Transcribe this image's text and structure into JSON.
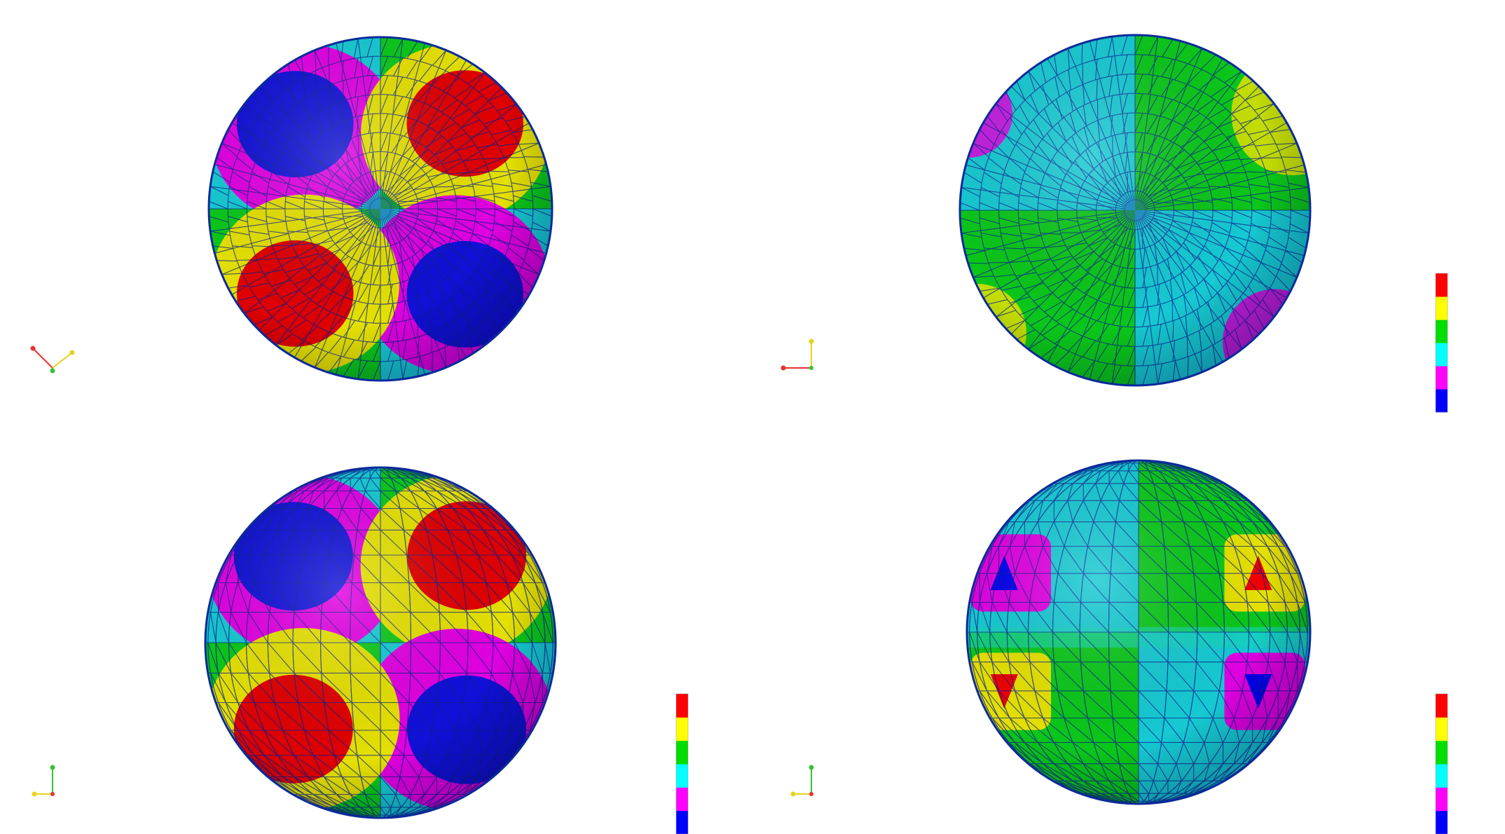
{
  "colors": {
    "background": "#ffffff",
    "mesh_edge": "#0a1f8f",
    "outline": "#0b2a9a",
    "axis_x": "#e8312a",
    "axis_y": "#36c236",
    "axis_z": "#e6d21a"
  },
  "color_bands": [
    "#0000ff",
    "#ff00ff",
    "#00ffff",
    "#00dd00",
    "#ffff00",
    "#ff0000"
  ],
  "views": [
    {
      "name": "view-top-left",
      "mesh": "fine-polar",
      "legend": false,
      "triad": "iso",
      "patches": [
        {
          "a": -2.36,
          "fill": "#0000ff"
        },
        {
          "a": -0.79,
          "fill": "#ff0000"
        },
        {
          "a": 0.79,
          "fill": "#0000ff"
        },
        {
          "a": 2.36,
          "fill": "#ff0000"
        }
      ]
    },
    {
      "name": "view-top-right",
      "mesh": "fine-polar",
      "legend": true,
      "triad": "side",
      "patches": []
    },
    {
      "name": "view-bottom-left",
      "mesh": "coarse-latlon",
      "legend": true,
      "triad": "front",
      "patches": [
        {
          "a": -2.36,
          "fill": "#0000ff"
        },
        {
          "a": -0.79,
          "fill": "#ff0000"
        },
        {
          "a": 0.79,
          "fill": "#0000ff"
        },
        {
          "a": 2.36,
          "fill": "#ff0000"
        }
      ]
    },
    {
      "name": "view-bottom-right",
      "mesh": "coarse-latlon",
      "legend": true,
      "triad": "front",
      "patches": []
    }
  ]
}
